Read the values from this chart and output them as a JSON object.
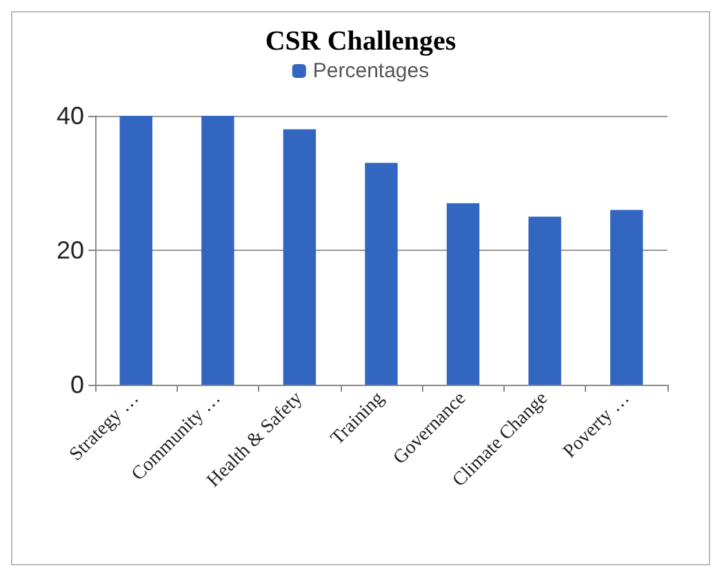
{
  "chart_data": {
    "type": "bar",
    "title": "CSR Challenges",
    "categories": [
      "Strategy …",
      "Community …",
      "Health & Safety",
      "Training",
      "Governance",
      "Climate Change",
      "Poverty …"
    ],
    "series": [
      {
        "name": "Percentages",
        "color": "#3366c0",
        "values": [
          40,
          40,
          38,
          33,
          27,
          25,
          26
        ]
      }
    ],
    "ylim": [
      0,
      40
    ],
    "yticks": [
      0,
      20,
      40
    ],
    "grid": "y",
    "legend": "top"
  }
}
